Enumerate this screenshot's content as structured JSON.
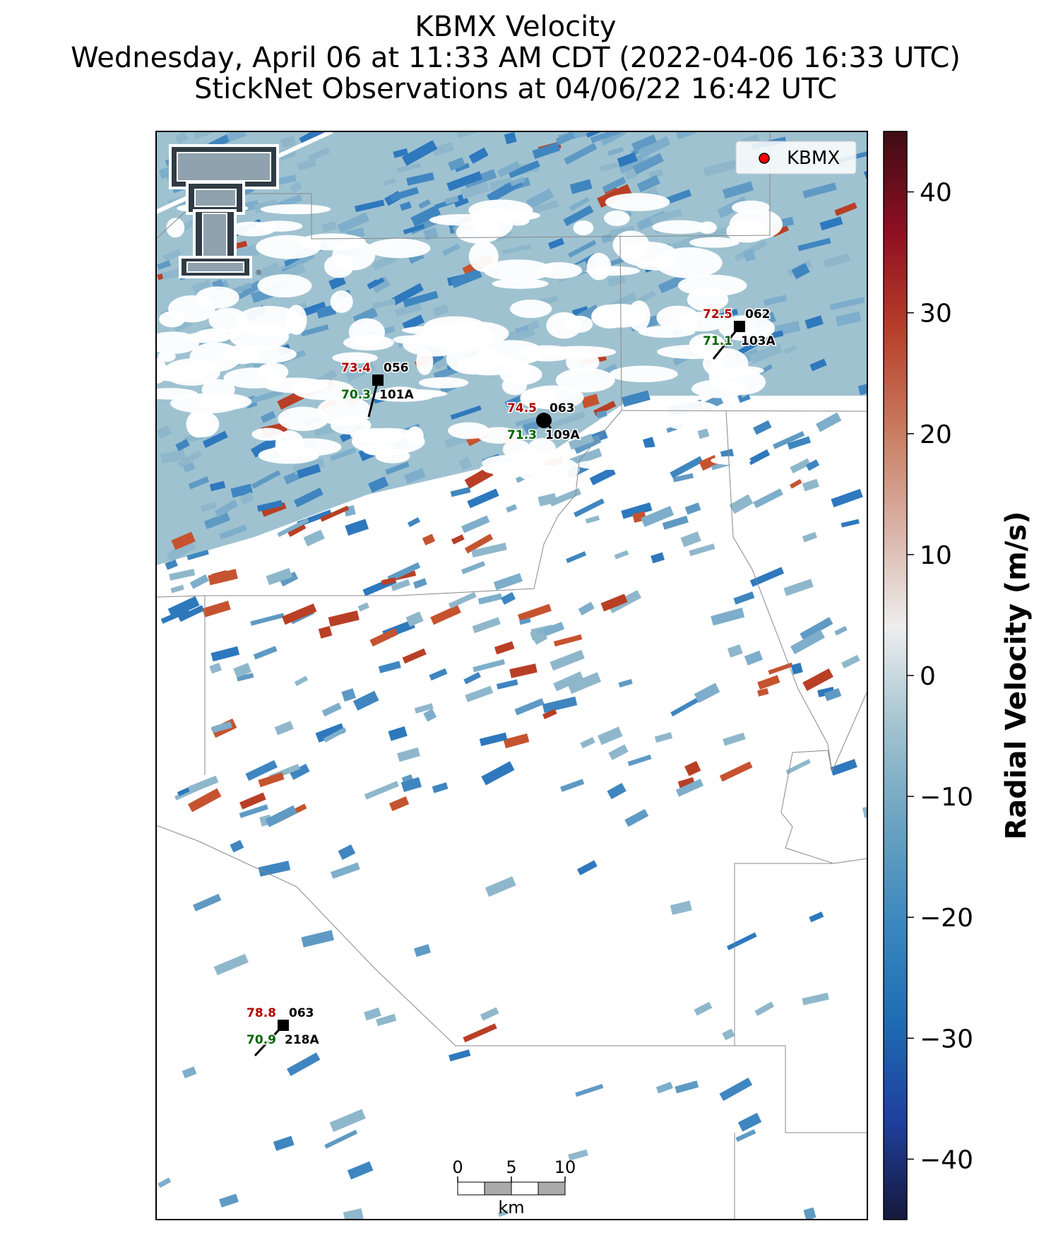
{
  "title": {
    "line1": "KBMX Velocity",
    "line2": "Wednesday, April 06 at 11:33 AM CDT (2022-04-06 16:33 UTC)",
    "line3": "StickNet Observations at 04/06/22 16:42 UTC"
  },
  "legend": {
    "marker_color": "#ff0000",
    "label": "KBMX"
  },
  "logo": {
    "name": "Texas Tech double-T logo",
    "registered_mark": "®"
  },
  "colorbar": {
    "label": "Radial Velocity (m/s)",
    "range": [
      -45,
      45
    ],
    "ticks": [
      {
        "value": 40,
        "label": "40"
      },
      {
        "value": 30,
        "label": "30"
      },
      {
        "value": 20,
        "label": "20"
      },
      {
        "value": 10,
        "label": "10"
      },
      {
        "value": 0,
        "label": "0"
      },
      {
        "value": -10,
        "label": "−10"
      },
      {
        "value": -20,
        "label": "−20"
      },
      {
        "value": -30,
        "label": "−30"
      },
      {
        "value": -40,
        "label": "−40"
      }
    ],
    "colors": [
      "#16193c",
      "#1f3f9e",
      "#1e6cb4",
      "#3b88bf",
      "#6aa3c0",
      "#a3c3d0",
      "#eeeeee",
      "#d9b2a6",
      "#c97a5f",
      "#b73f2a",
      "#8e0e22",
      "#3e0d14"
    ]
  },
  "stations": [
    {
      "id": "101A",
      "temperature": "73.4",
      "pressure_code": "056",
      "dewpoint": "70.3",
      "marker": "square"
    },
    {
      "id": "109A",
      "temperature": "74.5",
      "pressure_code": "063",
      "dewpoint": "71.3",
      "marker": "circle"
    },
    {
      "id": "103A",
      "temperature": "72.5",
      "pressure_code": "062",
      "dewpoint": "71.1",
      "marker": "square"
    },
    {
      "id": "218A",
      "temperature": "78.8",
      "pressure_code": "063",
      "dewpoint": "70.9",
      "marker": "square"
    }
  ],
  "scalebar": {
    "ticks": [
      "0",
      "5",
      "10"
    ],
    "unit": "km"
  },
  "colors": {
    "temperature": "#b00000",
    "dewpoint": "#006400",
    "map_fill": "#8fb7cb",
    "county_lines": "#888888"
  }
}
